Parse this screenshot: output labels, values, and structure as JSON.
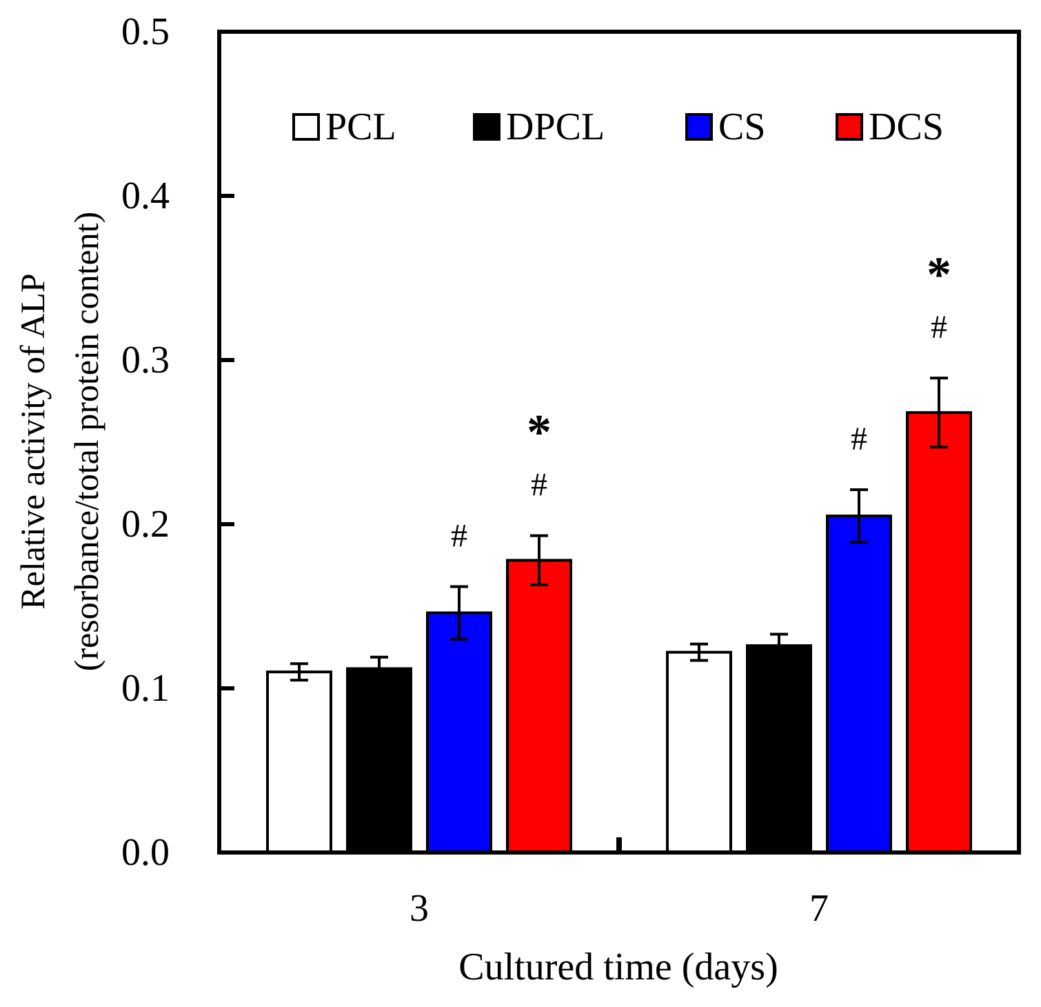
{
  "chart_data": {
    "type": "bar",
    "title": "",
    "xlabel": "Cultured time (days)",
    "ylabel_line1": "Relative activity of ALP",
    "ylabel_line2": "(resorbance/total protein content)",
    "categories": [
      "3",
      "7"
    ],
    "ylim": [
      0,
      0.5
    ],
    "yticks": [
      0.0,
      0.1,
      0.2,
      0.3,
      0.4,
      0.5
    ],
    "ytick_labels": [
      "0.0",
      "0.1",
      "0.2",
      "0.3",
      "0.4",
      "0.5"
    ],
    "legend_position": "top",
    "series": [
      {
        "name": "PCL",
        "color": "#ffffff",
        "values": [
          0.11,
          0.122
        ],
        "errors": [
          0.005,
          0.005
        ],
        "annotations": [
          [],
          []
        ]
      },
      {
        "name": "DPCL",
        "color": "#000000",
        "values": [
          0.112,
          0.126
        ],
        "errors": [
          0.007,
          0.007
        ],
        "annotations": [
          [],
          []
        ]
      },
      {
        "name": "CS",
        "color": "#0000ff",
        "values": [
          0.146,
          0.205
        ],
        "errors": [
          0.016,
          0.016
        ],
        "annotations": [
          [
            "#"
          ],
          [
            "#"
          ]
        ]
      },
      {
        "name": "DCS",
        "color": "#ff0000",
        "values": [
          0.178,
          0.268
        ],
        "errors": [
          0.015,
          0.021
        ],
        "annotations": [
          [
            "#",
            "*"
          ],
          [
            "#",
            "*"
          ]
        ]
      }
    ]
  }
}
